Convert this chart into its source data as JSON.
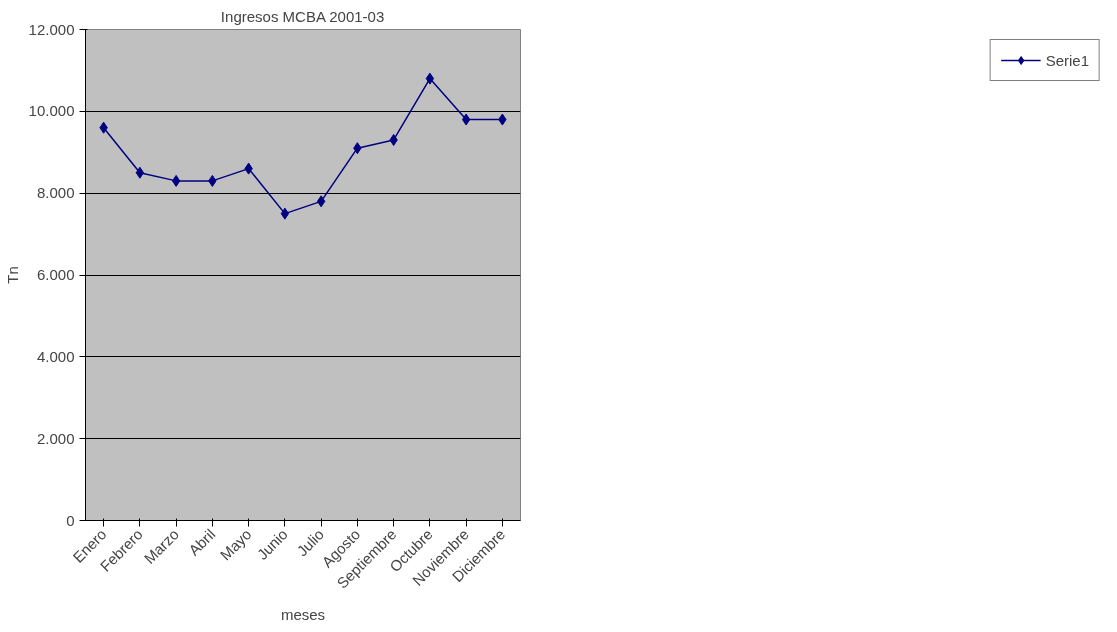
{
  "chart_data": {
    "type": "line",
    "title": "Ingresos MCBA 2001-03",
    "xlabel": "meses",
    "ylabel": "Tn",
    "categories": [
      "Enero",
      "Febrero",
      "Marzo",
      "Abril",
      "Mayo",
      "Junio",
      "Julio",
      "Agosto",
      "Septiembre",
      "Octubre",
      "Noviembre",
      "Diciembre"
    ],
    "series": [
      {
        "name": "Serie1",
        "color": "#000080",
        "values": [
          9600,
          8500,
          8300,
          8300,
          8600,
          7500,
          7800,
          9100,
          9300,
          10800,
          9800,
          9800
        ]
      }
    ],
    "ylim": [
      0,
      12000
    ],
    "yticks": [
      0,
      {
        "value": 2000,
        "label": "2.000"
      },
      {
        "value": 4000,
        "label": "4.000"
      },
      {
        "value": 6000,
        "label": "6.000"
      },
      {
        "value": 8000,
        "label": "8.000"
      },
      {
        "value": 10000,
        "label": "10.000"
      },
      {
        "value": 12000,
        "label": "12.000"
      }
    ],
    "grid": "y",
    "legend": "right",
    "marker": "diamond",
    "line_style": "solid"
  }
}
